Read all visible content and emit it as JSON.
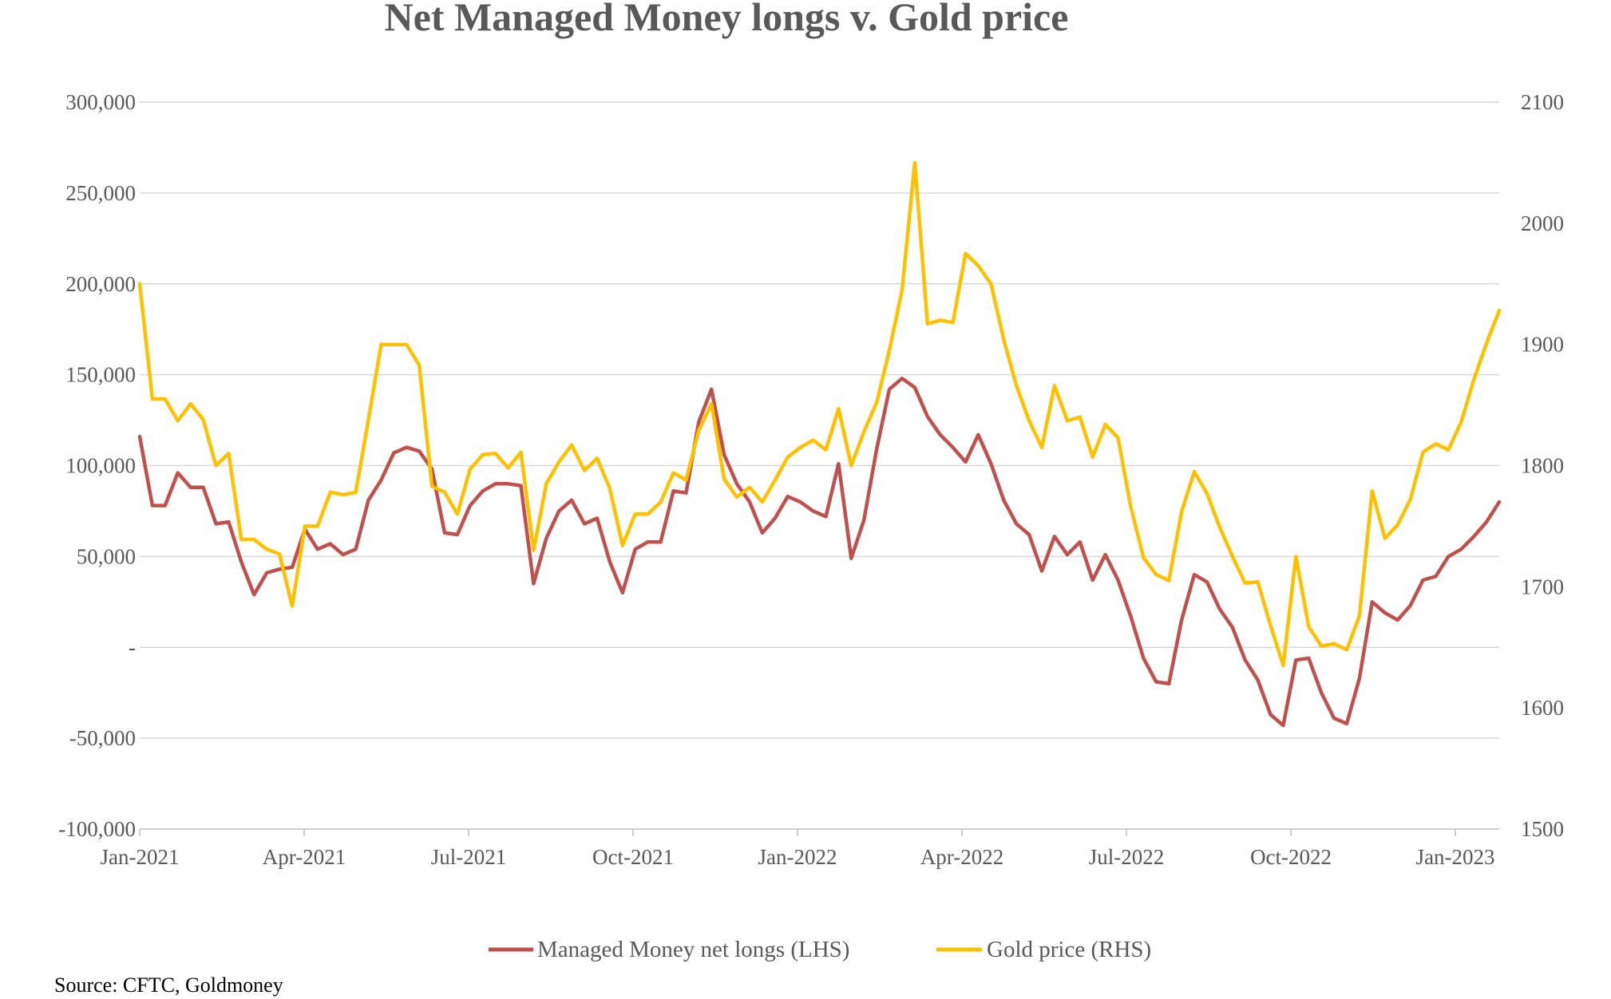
{
  "chart_data": {
    "type": "line",
    "title": "Net Managed Money longs v. Gold price",
    "source": "Source: CFTC, Goldmoney",
    "x_tick_labels": [
      "Jan-2021",
      "Apr-2021",
      "Jul-2021",
      "Oct-2021",
      "Jan-2022",
      "Apr-2022",
      "Jul-2022",
      "Oct-2022",
      "Jan-2023"
    ],
    "y_left": {
      "min": -100000,
      "max": 300000,
      "ticks": [
        300000,
        250000,
        200000,
        150000,
        100000,
        50000,
        0,
        -50000,
        -100000
      ],
      "tick_labels": [
        "300,000",
        "250,000",
        "200,000",
        "150,000",
        "100,000",
        "50,000",
        "-",
        "-50,000",
        "-100,000"
      ]
    },
    "y_right": {
      "min": 1500,
      "max": 2100,
      "ticks": [
        2100,
        2000,
        1900,
        1800,
        1700,
        1600,
        1500
      ],
      "tick_labels": [
        "2100",
        "2000",
        "1900",
        "1800",
        "1700",
        "1600",
        "1500"
      ]
    },
    "grid": true,
    "legend_position": "bottom",
    "series": [
      {
        "name": "Managed Money net longs (LHS)",
        "axis": "left",
        "color": "#c0504d",
        "values": [
          116000,
          78000,
          78000,
          96000,
          88000,
          88000,
          68000,
          69000,
          47000,
          29000,
          41000,
          43000,
          44000,
          65000,
          54000,
          57000,
          51000,
          54000,
          81000,
          92000,
          107000,
          110000,
          108000,
          98000,
          63000,
          62000,
          78000,
          86000,
          90000,
          90000,
          89000,
          35000,
          60000,
          75000,
          81000,
          68000,
          71000,
          47000,
          30000,
          54000,
          58000,
          58000,
          86000,
          85000,
          124000,
          142000,
          106000,
          90000,
          80000,
          63000,
          71000,
          83000,
          80000,
          75000,
          72000,
          101000,
          49000,
          70000,
          109000,
          142000,
          148000,
          143000,
          127000,
          117000,
          110000,
          102000,
          117000,
          101000,
          81000,
          68000,
          62000,
          42000,
          61000,
          51000,
          58000,
          37000,
          51000,
          37000,
          17000,
          -6000,
          -19000,
          -20000,
          15000,
          40000,
          36000,
          21000,
          11000,
          -7000,
          -18000,
          -37000,
          -43000,
          -7000,
          -6000,
          -25000,
          -39000,
          -42000,
          -17000,
          25000,
          19000,
          15000,
          23000,
          37000,
          39000,
          50000,
          54000,
          61000,
          69000,
          80000
        ]
      },
      {
        "name": "Gold price (RHS)",
        "axis": "right",
        "color": "#ffc000",
        "values": [
          1950,
          1855,
          1855,
          1837,
          1851,
          1838,
          1800,
          1810,
          1739,
          1739,
          1731,
          1727,
          1684,
          1750,
          1750,
          1778,
          1776,
          1778,
          1838,
          1900,
          1900,
          1900,
          1883,
          1783,
          1778,
          1760,
          1797,
          1809,
          1810,
          1798,
          1811,
          1730,
          1785,
          1803,
          1817,
          1796,
          1806,
          1781,
          1734,
          1760,
          1760,
          1770,
          1794,
          1788,
          1829,
          1851,
          1789,
          1774,
          1782,
          1770,
          1788,
          1807,
          1815,
          1821,
          1813,
          1847,
          1800,
          1828,
          1852,
          1895,
          1945,
          2050,
          1917,
          1920,
          1918,
          1975,
          1965,
          1950,
          1904,
          1866,
          1837,
          1815,
          1866,
          1837,
          1840,
          1807,
          1834,
          1823,
          1766,
          1724,
          1710,
          1705,
          1762,
          1795,
          1777,
          1749,
          1725,
          1703,
          1704,
          1668,
          1635,
          1725,
          1667,
          1651,
          1653,
          1648,
          1676,
          1779,
          1740,
          1751,
          1772,
          1811,
          1818,
          1813,
          1836,
          1871,
          1901,
          1928
        ]
      }
    ]
  }
}
